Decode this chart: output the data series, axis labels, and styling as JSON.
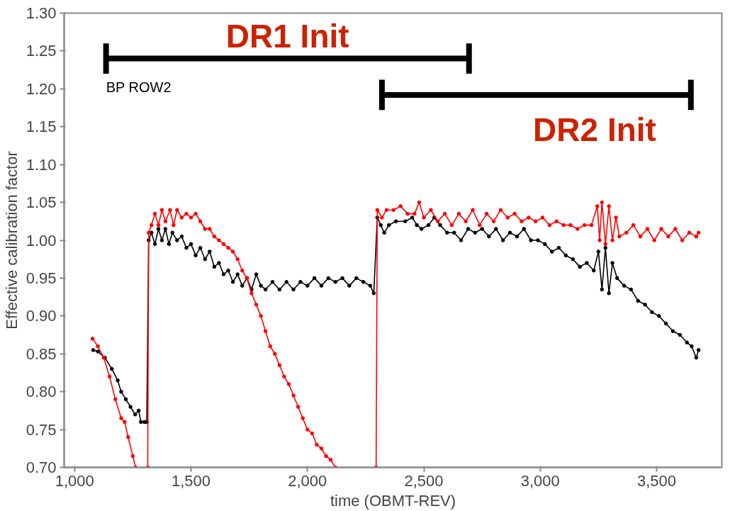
{
  "chart_data": {
    "type": "line",
    "xlabel": "time (OBMT-REV)",
    "ylabel": "Effective calibration factor",
    "xlim": [
      955,
      3780
    ],
    "ylim": [
      0.7,
      1.3
    ],
    "xticks": [
      {
        "value": 1000,
        "label": "1,000"
      },
      {
        "value": 1500,
        "label": "1,500"
      },
      {
        "value": 2000,
        "label": "2,000"
      },
      {
        "value": 2500,
        "label": "2,500"
      },
      {
        "value": 3000,
        "label": "3,000"
      },
      {
        "value": 3500,
        "label": "3,500"
      }
    ],
    "yticks": [
      {
        "value": 0.7,
        "label": "0.70"
      },
      {
        "value": 0.75,
        "label": "0.75"
      },
      {
        "value": 0.8,
        "label": "0.80"
      },
      {
        "value": 0.85,
        "label": "0.85"
      },
      {
        "value": 0.9,
        "label": "0.90"
      },
      {
        "value": 0.95,
        "label": "0.95"
      },
      {
        "value": 1.0,
        "label": "1.00"
      },
      {
        "value": 1.05,
        "label": "1.05"
      },
      {
        "value": 1.1,
        "label": "1.10"
      },
      {
        "value": 1.15,
        "label": "1.15"
      },
      {
        "value": 1.2,
        "label": "1.20"
      },
      {
        "value": 1.25,
        "label": "1.25"
      },
      {
        "value": 1.3,
        "label": "1.30"
      }
    ],
    "grid": false,
    "marker": "circle",
    "line_style": "solid",
    "series": [
      {
        "color": "#000000",
        "x": [
          1080,
          1100,
          1130,
          1160,
          1185,
          1200,
          1220,
          1240,
          1260,
          1275,
          1285,
          1300,
          1310,
          1318,
          1330,
          1345,
          1360,
          1375,
          1390,
          1405,
          1420,
          1440,
          1460,
          1480,
          1500,
          1520,
          1540,
          1560,
          1580,
          1600,
          1620,
          1640,
          1660,
          1680,
          1700,
          1720,
          1740,
          1760,
          1780,
          1800,
          1820,
          1850,
          1880,
          1910,
          1940,
          1970,
          2000,
          2030,
          2060,
          2090,
          2120,
          2150,
          2180,
          2210,
          2240,
          2270,
          2285,
          2300,
          2315,
          2330,
          2350,
          2380,
          2420,
          2450,
          2470,
          2490,
          2520,
          2545,
          2570,
          2600,
          2630,
          2660,
          2690,
          2720,
          2750,
          2780,
          2810,
          2840,
          2870,
          2900,
          2930,
          2960,
          2990,
          3020,
          3050,
          3080,
          3110,
          3140,
          3170,
          3200,
          3230,
          3250,
          3265,
          3280,
          3295,
          3310,
          3330,
          3360,
          3390,
          3420,
          3450,
          3480,
          3510,
          3540,
          3570,
          3600,
          3630,
          3650,
          3670,
          3680
        ],
        "values": [
          0.855,
          0.853,
          0.845,
          0.83,
          0.815,
          0.8,
          0.79,
          0.78,
          0.77,
          0.775,
          0.76,
          0.76,
          0.76,
          1.0,
          1.01,
          0.995,
          1.015,
          1.0,
          1.015,
          0.995,
          1.01,
          1.0,
          1.005,
          0.99,
          0.995,
          0.98,
          0.99,
          0.975,
          0.985,
          0.965,
          0.97,
          0.955,
          0.96,
          0.945,
          0.955,
          0.94,
          0.95,
          0.935,
          0.955,
          0.94,
          0.935,
          0.945,
          0.935,
          0.945,
          0.935,
          0.945,
          0.94,
          0.95,
          0.94,
          0.95,
          0.945,
          0.95,
          0.94,
          0.95,
          0.945,
          0.94,
          0.93,
          1.03,
          1.02,
          1.01,
          1.02,
          1.025,
          1.025,
          1.03,
          1.02,
          1.015,
          1.02,
          1.03,
          1.02,
          1.01,
          1.01,
          1.0,
          1.015,
          1.01,
          1.015,
          1.005,
          1.015,
          1.0,
          1.01,
          1.005,
          1.015,
          1.0,
          1.0,
          0.995,
          0.985,
          0.99,
          0.98,
          0.975,
          0.965,
          0.97,
          0.96,
          0.985,
          0.935,
          0.99,
          0.93,
          0.97,
          0.95,
          0.94,
          0.935,
          0.92,
          0.915,
          0.905,
          0.9,
          0.89,
          0.88,
          0.875,
          0.865,
          0.86,
          0.845,
          0.855
        ]
      },
      {
        "color": "#ff0000",
        "x": [
          1077,
          1100,
          1125,
          1150,
          1175,
          1200,
          1215,
          1230,
          1250,
          1262,
          1290,
          1314,
          1318,
          1330,
          1345,
          1360,
          1375,
          1390,
          1410,
          1425,
          1440,
          1460,
          1480,
          1500,
          1520,
          1540,
          1560,
          1580,
          1600,
          1620,
          1640,
          1660,
          1680,
          1700,
          1720,
          1740,
          1760,
          1780,
          1800,
          1820,
          1840,
          1860,
          1880,
          1900,
          1920,
          1940,
          1960,
          1980,
          2000,
          2020,
          2040,
          2060,
          2080,
          2100,
          2120,
          2200,
          2295,
          2300,
          2320,
          2340,
          2370,
          2400,
          2430,
          2460,
          2480,
          2500,
          2530,
          2560,
          2590,
          2620,
          2650,
          2680,
          2710,
          2740,
          2770,
          2800,
          2830,
          2860,
          2890,
          2920,
          2950,
          2980,
          3010,
          3040,
          3070,
          3100,
          3130,
          3160,
          3190,
          3220,
          3245,
          3255,
          3265,
          3280,
          3295,
          3310,
          3325,
          3340,
          3370,
          3400,
          3430,
          3460,
          3490,
          3520,
          3550,
          3580,
          3610,
          3640,
          3670,
          3680
        ],
        "values": [
          0.87,
          0.86,
          0.845,
          0.82,
          0.79,
          0.765,
          0.76,
          0.74,
          0.715,
          0.7,
          null,
          0.7,
          1.01,
          1.02,
          1.035,
          1.02,
          1.04,
          1.025,
          1.04,
          1.02,
          1.04,
          1.03,
          1.035,
          1.03,
          1.035,
          1.025,
          1.015,
          1.015,
          1.005,
          1.0,
          0.995,
          0.99,
          0.985,
          0.975,
          0.96,
          0.95,
          0.93,
          0.915,
          0.9,
          0.88,
          0.86,
          0.85,
          0.835,
          0.82,
          0.81,
          0.795,
          0.78,
          0.765,
          0.75,
          0.745,
          0.73,
          0.725,
          0.715,
          0.71,
          0.7,
          null,
          0.7,
          1.04,
          1.03,
          1.04,
          1.04,
          1.045,
          1.035,
          1.035,
          1.05,
          1.03,
          1.04,
          1.025,
          1.035,
          1.02,
          1.035,
          1.025,
          1.04,
          1.02,
          1.035,
          1.025,
          1.04,
          1.03,
          1.035,
          1.025,
          1.03,
          1.025,
          1.03,
          1.02,
          1.025,
          1.02,
          1.02,
          1.015,
          1.02,
          1.02,
          1.045,
          1.0,
          1.05,
          0.995,
          1.045,
          1.0,
          1.03,
          1.005,
          1.01,
          1.02,
          1.005,
          1.015,
          1.0,
          1.015,
          1.005,
          1.015,
          1.0,
          1.01,
          1.005,
          1.01
        ]
      },
      {
        "color": "#000000",
        "marker": "none",
        "x": [
          1135,
          2694
        ],
        "values": [
          1.24,
          1.24
        ],
        "errors": [
          0.02,
          0.02
        ]
      },
      {
        "color": "#000000",
        "marker": "none",
        "x": [
          2320,
          3647
        ],
        "values": [
          1.192,
          1.192
        ],
        "errors": [
          0.02,
          0.02
        ]
      }
    ],
    "annotations": [
      "DR1 Init",
      "DR2 Init",
      "BP ROW2"
    ]
  }
}
